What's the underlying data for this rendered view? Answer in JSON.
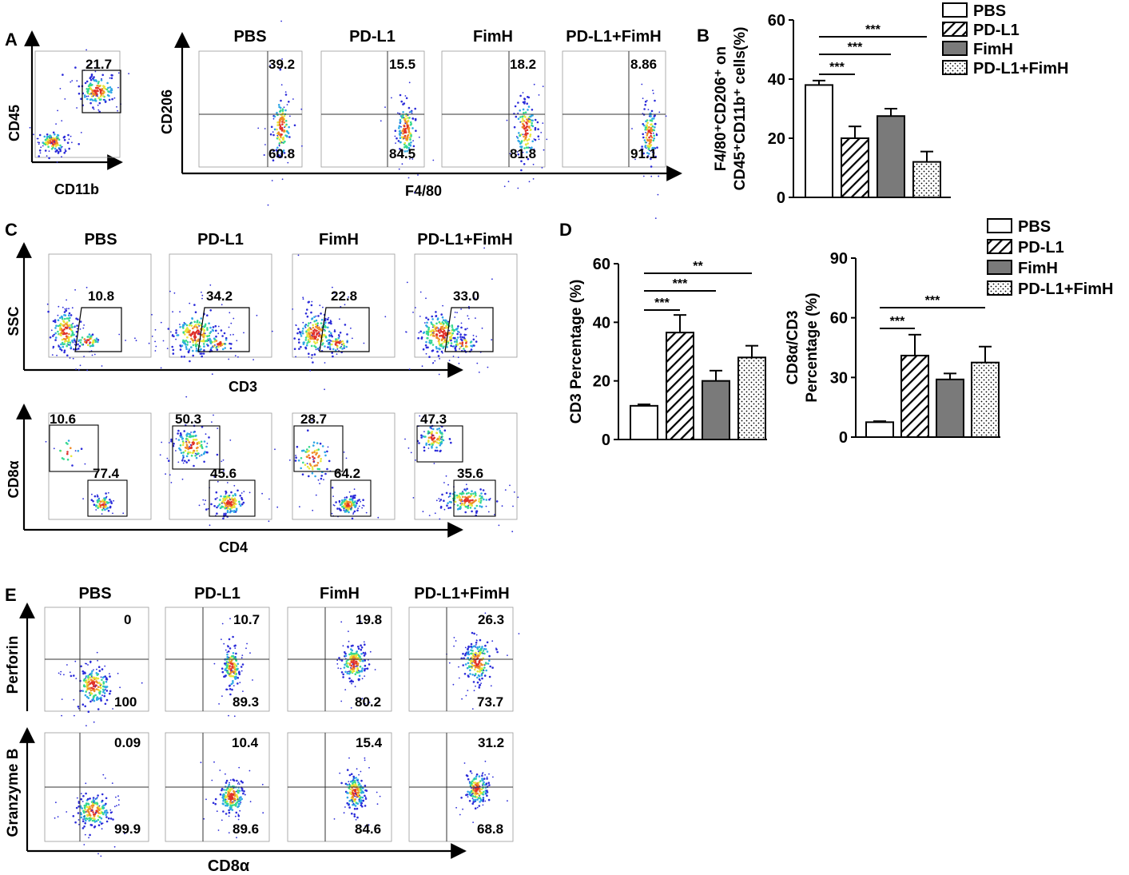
{
  "figure": {
    "colors": {
      "ink": "#000000",
      "grid": "#333333",
      "fimh_fill": "#7a7a7a",
      "density": [
        "#2b2bd9",
        "#2fa7e6",
        "#36d98f",
        "#e8e63a",
        "#f08b2a",
        "#e0302a"
      ]
    },
    "groups": [
      "PBS",
      "PD-L1",
      "FimH",
      "PD-L1+FimH"
    ],
    "panelA": {
      "letter": "A",
      "gate": {
        "xlabel": "CD11b",
        "ylabel": "CD45",
        "value": "21.7"
      },
      "quad": {
        "xlabel": "F4/80",
        "ylabel": "CD206",
        "upper": [
          "39.2",
          "15.5",
          "18.2",
          "8.86"
        ],
        "lower": [
          "60.8",
          "84.5",
          "81.8",
          "91.1"
        ]
      }
    },
    "panelC": {
      "letter": "C",
      "ssc": {
        "xlabel": "CD3",
        "ylabel": "SSC",
        "values": [
          "10.8",
          "34.2",
          "22.8",
          "33.0"
        ]
      },
      "cd8": {
        "xlabel": "CD4",
        "ylabel": "CD8α",
        "upper": [
          "10.6",
          "50.3",
          "28.7",
          "47.3"
        ],
        "lower": [
          "77.4",
          "45.6",
          "64.2",
          "35.6"
        ]
      }
    },
    "panelE": {
      "letter": "E",
      "xlabel": "CD8α",
      "perforin": {
        "ylabel": "Perforin",
        "upper": [
          "0",
          "10.7",
          "19.8",
          "26.3"
        ],
        "lower": [
          "100",
          "89.3",
          "80.2",
          "73.7"
        ]
      },
      "granzyme": {
        "ylabel": "Granzyme B",
        "upper": [
          "0.09",
          "10.4",
          "15.4",
          "31.2"
        ],
        "lower": [
          "99.9",
          "89.6",
          "84.6",
          "68.8"
        ]
      }
    },
    "legend": {
      "items": [
        "PBS",
        "PD-L1",
        "FimH",
        "PD-L1+FimH"
      ]
    }
  },
  "chart_data": [
    {
      "type": "bar",
      "panel": "B",
      "categories": [
        "PBS",
        "PD-L1",
        "FimH",
        "PD-L1+FimH"
      ],
      "values": [
        38,
        20,
        27.5,
        12
      ],
      "errors": [
        1.5,
        4,
        2.5,
        3.5
      ],
      "ylim": [
        0,
        60
      ],
      "yticks": [
        "0",
        "20",
        "40",
        "60"
      ],
      "ylabel_line1": "F4/80⁺CD206⁺ on",
      "ylabel_line2": "CD45⁺CD11b⁺ cells(%)",
      "significance": [
        "***",
        "***",
        "***"
      ]
    },
    {
      "type": "bar",
      "panel": "D",
      "categories": [
        "PBS",
        "PD-L1",
        "FimH",
        "PD-L1+FimH"
      ],
      "values": [
        11.5,
        36.5,
        20,
        28
      ],
      "errors": [
        0.5,
        6,
        3.5,
        4
      ],
      "ylim": [
        0,
        60
      ],
      "yticks": [
        "0",
        "20",
        "40",
        "60"
      ],
      "ylabel": "CD3 Percentage (%)",
      "significance": [
        "***",
        "***",
        "**"
      ]
    },
    {
      "type": "bar",
      "panel": "D",
      "categories": [
        "PBS",
        "PD-L1",
        "FimH",
        "PD-L1+FimH"
      ],
      "values": [
        7.5,
        41,
        29,
        37.5
      ],
      "errors": [
        0.5,
        10.5,
        3,
        8
      ],
      "ylim": [
        0,
        90
      ],
      "yticks": [
        "0",
        "30",
        "60",
        "90"
      ],
      "ylabel_line1": "CD8α/CD3",
      "ylabel_line2": "Percentage (%)",
      "significance": [
        "***",
        "***"
      ]
    }
  ]
}
